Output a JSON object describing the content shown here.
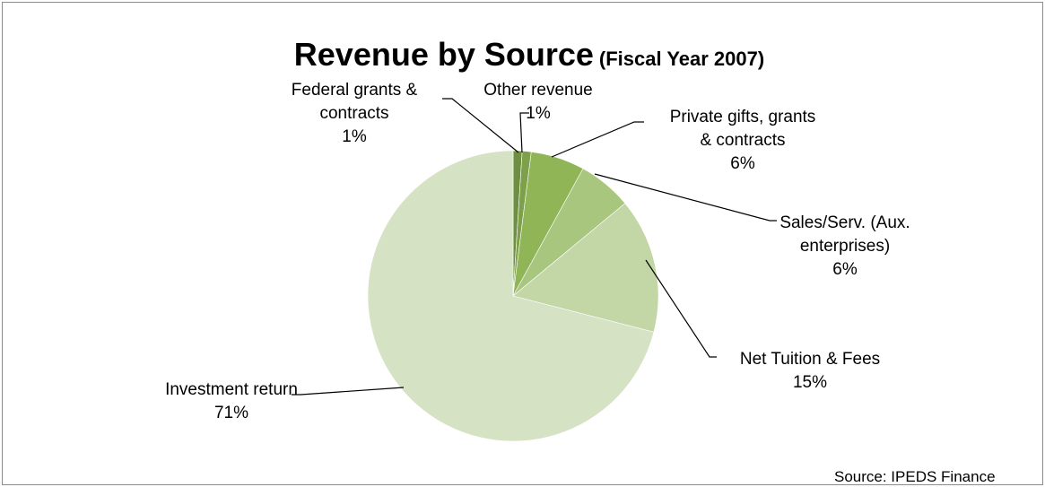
{
  "chart_data": {
    "type": "pie",
    "title": "Revenue by Source",
    "subtitle": "(Fiscal Year 2007)",
    "slices": [
      {
        "label_lines": [
          "Federal grants &",
          "contracts"
        ],
        "percent_label": "1%",
        "value": 1,
        "color": "#6e8f3f"
      },
      {
        "label_lines": [
          "Other revenue"
        ],
        "percent_label": "1%",
        "value": 1,
        "color": "#7ea04a"
      },
      {
        "label_lines": [
          "Private gifts,  grants",
          "& contracts"
        ],
        "percent_label": "6%",
        "value": 6,
        "color": "#8fb556"
      },
      {
        "label_lines": [
          "Sales/Serv. (Aux.",
          "enterprises)"
        ],
        "percent_label": "6%",
        "value": 6,
        "color": "#a8c67d"
      },
      {
        "label_lines": [
          "Net Tuition  & Fees"
        ],
        "percent_label": "15%",
        "value": 15,
        "color": "#c3d6a6"
      },
      {
        "label_lines": [
          "Investment return"
        ],
        "percent_label": "71%",
        "value": 71,
        "color": "#d6e2c4"
      }
    ],
    "source_note": "Source: IPEDS Finance"
  }
}
